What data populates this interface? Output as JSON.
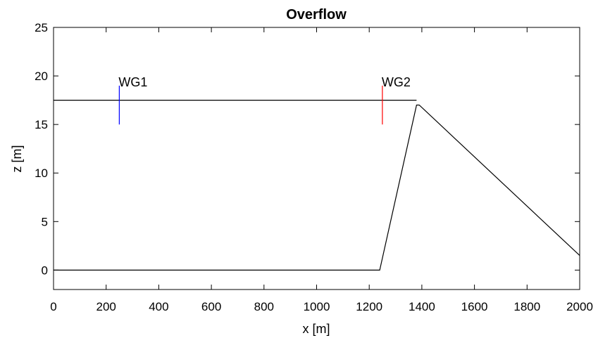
{
  "chart_data": {
    "type": "line",
    "title": "Overflow",
    "xlabel": "x [m]",
    "ylabel": "z [m]",
    "xlim": [
      0,
      2000
    ],
    "ylim": [
      -2,
      25
    ],
    "xticks": [
      0,
      200,
      400,
      600,
      800,
      1000,
      1200,
      1400,
      1600,
      1800,
      2000
    ],
    "yticks": [
      0,
      5,
      10,
      15,
      20,
      25
    ],
    "grid": false,
    "series": [
      {
        "color": "#000000",
        "x": [
          0,
          1240,
          1380,
          1390,
          2000
        ],
        "y": [
          0,
          0,
          17,
          17,
          1.5
        ]
      },
      {
        "color": "#000000",
        "x": [
          0,
          1380
        ],
        "y": [
          17.5,
          17.5
        ]
      }
    ],
    "annotations": [
      {
        "label": "WG1",
        "x": 250,
        "y_from": 15,
        "y_to": 19,
        "color": "#0000ff"
      },
      {
        "label": "WG2",
        "x": 1250,
        "y_from": 15,
        "y_to": 19,
        "color": "#ff0000"
      }
    ]
  }
}
